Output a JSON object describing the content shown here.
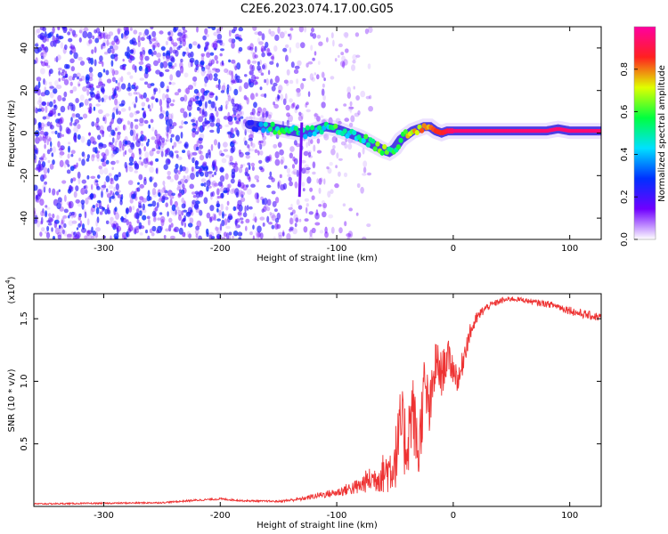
{
  "title": "C2E6.2023.074.17.00.G05",
  "chart_data": [
    {
      "type": "heatmap",
      "xlabel": "Height of straight line (km)",
      "ylabel": "Frequency (Hz)",
      "xlim": [
        -360,
        127
      ],
      "ylim": [
        -50,
        50
      ],
      "xticks": [
        -300,
        -200,
        -100,
        0,
        100
      ],
      "yticks": [
        -40,
        -20,
        0,
        20,
        40
      ],
      "colorbar": {
        "label": "Normalized spectral amplitude",
        "range": [
          0,
          1
        ],
        "ticks": [
          "0.0",
          "0.2",
          "0.4",
          "0.6",
          "0.8"
        ],
        "colors": [
          "#ffffff",
          "#7000ff",
          "#0030ff",
          "#00e0ff",
          "#00ff40",
          "#e0ff00",
          "#ff2020",
          "#ff00a0"
        ]
      },
      "ridge": {
        "height_km": [
          -175,
          -160,
          -150,
          -140,
          -130,
          -120,
          -110,
          -100,
          -90,
          -80,
          -70,
          -60,
          -55,
          -50,
          -45,
          -40,
          -35,
          -30,
          -25,
          -20,
          -15,
          -10,
          -5,
          0,
          20,
          50,
          80,
          90,
          100,
          127
        ],
        "freq_hz": [
          4,
          3,
          2,
          1,
          0,
          1,
          3,
          2,
          0,
          -2,
          -5,
          -8,
          -9,
          -7,
          -3,
          -1,
          1,
          2,
          3,
          3,
          1,
          0,
          1,
          1,
          1,
          1,
          1,
          2,
          1,
          1
        ],
        "amplitude": [
          0.2,
          0.45,
          0.55,
          0.5,
          0.45,
          0.45,
          0.5,
          0.55,
          0.5,
          0.5,
          0.55,
          0.6,
          0.6,
          0.55,
          0.65,
          0.7,
          0.75,
          0.75,
          0.8,
          0.8,
          0.85,
          0.85,
          0.9,
          0.95,
          0.95,
          0.95,
          0.95,
          0.95,
          0.95,
          0.95
        ]
      },
      "spike": {
        "height_km": [
          -130,
          -132
        ],
        "freq_hz": [
          5,
          -30
        ]
      },
      "noise": {
        "region_km": [
          -360,
          -70
        ],
        "density_peak_km": [
          -360,
          -190
        ],
        "amplitude_max": 0.25,
        "streak_km": [
          -230,
          -200
        ]
      }
    },
    {
      "type": "line",
      "xlabel": "Height of straight line (km)",
      "ylabel": "SNR (10 * v/v)",
      "yscale_label": "(x10",
      "yscale_exp": "4",
      "yscale_close": ")",
      "xlim": [
        -360,
        127
      ],
      "ylim": [
        0,
        17000
      ],
      "xticks": [
        -300,
        -200,
        -100,
        0,
        100
      ],
      "yticks": [
        {
          "value": 5000,
          "label": "0.5"
        },
        {
          "value": 10000,
          "label": "1.0"
        },
        {
          "value": 15000,
          "label": "1.5"
        }
      ],
      "series": [
        {
          "name": "SNR",
          "color": "#ee3333",
          "x": [
            -360,
            -300,
            -250,
            -220,
            -200,
            -180,
            -150,
            -130,
            -115,
            -100,
            -90,
            -80,
            -75,
            -65,
            -58,
            -52,
            -48,
            -45,
            -40,
            -35,
            -30,
            -25,
            -20,
            -15,
            -10,
            -5,
            0,
            5,
            10,
            15,
            20,
            25,
            30,
            40,
            50,
            60,
            70,
            80,
            90,
            95,
            100,
            105,
            110,
            115,
            120,
            127
          ],
          "y": [
            200,
            250,
            300,
            500,
            600,
            450,
            400,
            600,
            900,
            1100,
            1400,
            1600,
            2000,
            2300,
            2800,
            3200,
            4500,
            6500,
            4800,
            8000,
            4000,
            9500,
            7500,
            11500,
            10500,
            12000,
            11000,
            10000,
            12500,
            14000,
            15000,
            15600,
            16000,
            16400,
            16600,
            16500,
            16300,
            16200,
            16000,
            15800,
            15700,
            15500,
            15400,
            15300,
            15200,
            15100
          ],
          "noise_amplitude": [
            60,
            60,
            60,
            80,
            80,
            70,
            70,
            150,
            250,
            350,
            500,
            700,
            900,
            1200,
            1800,
            2200,
            2800,
            3200,
            3200,
            3000,
            2800,
            2600,
            2400,
            2000,
            1800,
            1500,
            1200,
            1100,
            1000,
            700,
            500,
            400,
            300,
            250,
            200,
            200,
            250,
            250,
            300,
            300,
            350,
            350,
            350,
            350,
            350,
            350
          ]
        }
      ]
    }
  ]
}
